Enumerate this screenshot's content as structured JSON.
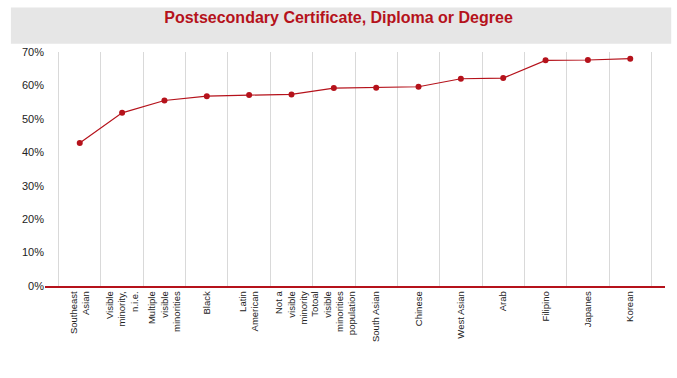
{
  "chart_data": {
    "type": "line",
    "title": "Postsecondary Certificate, Diploma or Degree",
    "categories": [
      "Southeast Asian",
      "Visible minority, n.i.e.",
      "Multiple visible minorities",
      "Black",
      "Latin American",
      "Not a visible minority",
      "Totoal visible minorities population",
      "South Asian",
      "Chinese",
      "West Asian",
      "Arab",
      "Filipino",
      "Japanes",
      "Korean"
    ],
    "values": [
      42.8,
      51.8,
      55.5,
      56.8,
      57.1,
      57.3,
      59.2,
      59.3,
      59.6,
      62.0,
      62.2,
      67.5,
      67.6,
      68.0
    ],
    "color": "#b5121b",
    "marker": "circle",
    "ylim": [
      0,
      70
    ],
    "yticks": [
      {
        "value": 0,
        "label": "0%"
      },
      {
        "value": 10,
        "label": "10%"
      },
      {
        "value": 20,
        "label": "20%"
      },
      {
        "value": 30,
        "label": "30%"
      },
      {
        "value": 40,
        "label": "40%"
      },
      {
        "value": 50,
        "label": "50%"
      },
      {
        "value": 60,
        "label": "60%"
      },
      {
        "value": 70,
        "label": "70%"
      }
    ],
    "grid": true
  }
}
